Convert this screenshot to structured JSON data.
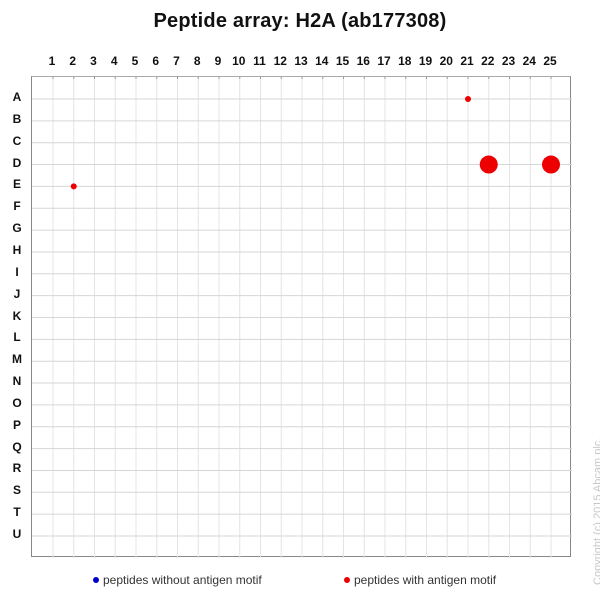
{
  "title": "Peptide array:  H2A (ab177308)",
  "copyright": "Copyright (c) 2015 Abcam plc.",
  "legend": [
    {
      "label": "peptides without antigen motif",
      "color": "#0000cc"
    },
    {
      "label": "peptides with antigen motif",
      "color": "#ee0000"
    }
  ],
  "chart_data": {
    "type": "scatter",
    "title": "Peptide array:  H2A (ab177308)",
    "xlabel": "",
    "ylabel": "",
    "x_ticks": [
      "1",
      "2",
      "3",
      "4",
      "5",
      "6",
      "7",
      "8",
      "9",
      "10",
      "11",
      "12",
      "13",
      "14",
      "15",
      "16",
      "17",
      "18",
      "19",
      "20",
      "21",
      "22",
      "23",
      "24",
      "25"
    ],
    "y_ticks": [
      "A",
      "B",
      "C",
      "D",
      "E",
      "F",
      "G",
      "H",
      "I",
      "J",
      "K",
      "L",
      "M",
      "N",
      "O",
      "P",
      "Q",
      "R",
      "S",
      "T",
      "U"
    ],
    "grid": true,
    "legend_position": "bottom",
    "series": [
      {
        "name": "peptides without antigen motif",
        "color": "#0000cc",
        "points": []
      },
      {
        "name": "peptides with antigen motif",
        "color": "#ee0000",
        "points": [
          {
            "col": 21,
            "row": "A",
            "size": "small"
          },
          {
            "col": 22,
            "row": "D",
            "size": "large"
          },
          {
            "col": 25,
            "row": "D",
            "size": "large"
          },
          {
            "col": 2,
            "row": "E",
            "size": "small"
          }
        ]
      }
    ]
  }
}
